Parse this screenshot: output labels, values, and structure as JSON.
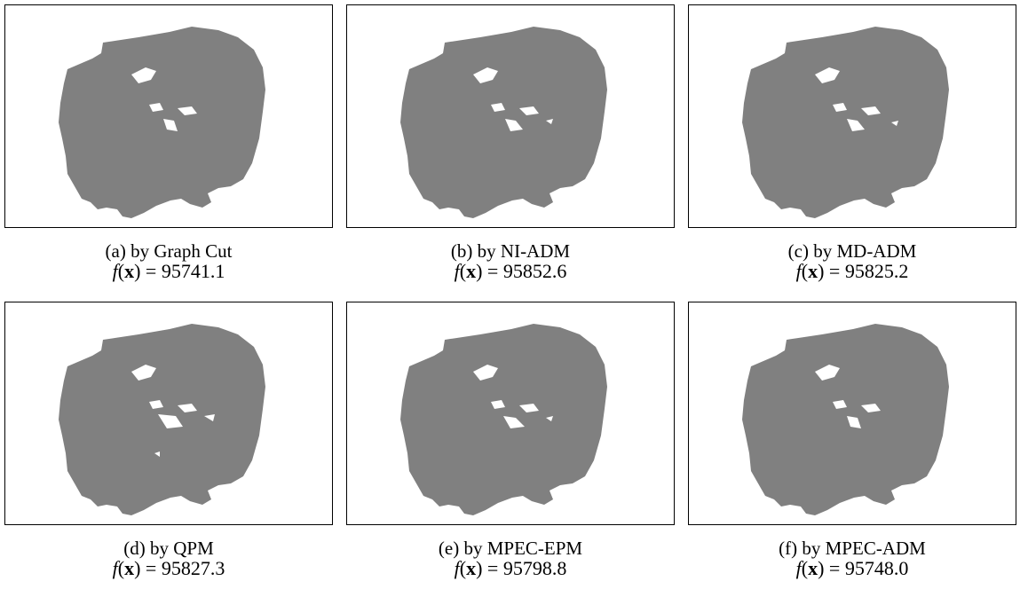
{
  "figure": {
    "panels": [
      {
        "caption": "(a) by Graph Cut",
        "f_value": "95741.1",
        "variant": "a"
      },
      {
        "caption": "(b) by NI-ADM",
        "f_value": "95852.6",
        "variant": "b"
      },
      {
        "caption": "(c) by MD-ADM",
        "f_value": "95825.2",
        "variant": "c"
      },
      {
        "caption": "(d) by QPM",
        "f_value": "95827.3",
        "variant": "d"
      },
      {
        "caption": "(e) by MPEC-EPM",
        "f_value": "95798.8",
        "variant": "e"
      },
      {
        "caption": "(f) by MPEC-ADM",
        "f_value": "95748.0",
        "variant": "f"
      }
    ],
    "formula_lhs": "f",
    "formula_var": "x",
    "segment_color": "#808080"
  }
}
